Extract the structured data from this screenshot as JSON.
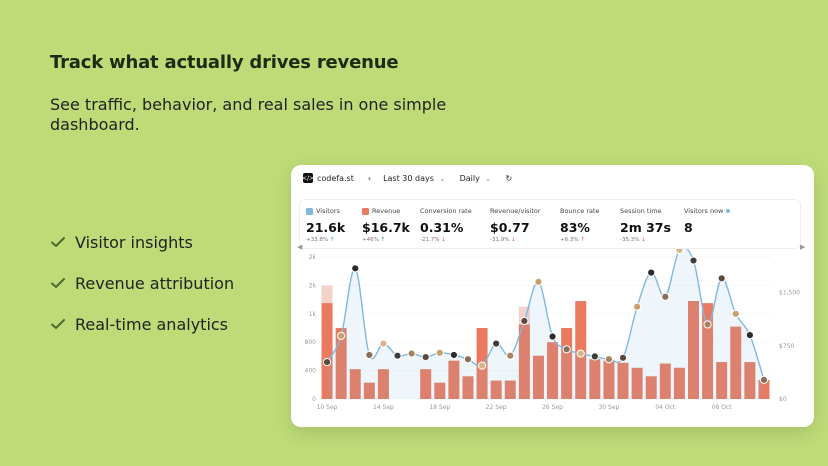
{
  "hero": {
    "headline": "Track what actually drives revenue",
    "subheadline": "See traffic, behavior, and real sales in one simple dashboard.",
    "features": [
      "Visitor insights",
      "Revenue attribution",
      "Real-time analytics"
    ]
  },
  "dashboard": {
    "site": "codefa.st",
    "range": "Last 30 days",
    "granularity": "Daily",
    "metrics": [
      {
        "label": "Visitors",
        "value": "21.6k",
        "change": "+33.8%",
        "dir": "up",
        "checkbox": "blue"
      },
      {
        "label": "Revenue",
        "value": "$16.7k",
        "change": "+46%",
        "dir": "up",
        "checkbox": "orange"
      },
      {
        "label": "Conversion rate",
        "value": "0.31%",
        "change": "-21.7%",
        "dir": "down"
      },
      {
        "label": "Revenue/visitor",
        "value": "$0.77",
        "change": "-31.9%",
        "dir": "down"
      },
      {
        "label": "Bounce rate",
        "value": "83%",
        "change": "+6.3%",
        "dir": "up"
      },
      {
        "label": "Session time",
        "value": "2m 37s",
        "change": "-35.3%",
        "dir": "down"
      },
      {
        "label": "Visitors now",
        "value": "8",
        "change": "",
        "dir": ""
      }
    ]
  },
  "colors": {
    "background": "#bedb78",
    "bar": "#e97a5f",
    "bar_light": "#f3d3c9",
    "line": "#7fb8e2",
    "check": "#4c6a2c"
  },
  "chart_data": {
    "type": "bar",
    "series": [
      {
        "name": "Revenue",
        "values": [
          1350,
          1000,
          420,
          230,
          420,
          0,
          0,
          420,
          230,
          540,
          320,
          1000,
          260,
          260,
          1050,
          610,
          800,
          1000,
          1380,
          560,
          540,
          510,
          440,
          320,
          500,
          440,
          1380,
          1350,
          520,
          1020,
          520,
          270
        ]
      },
      {
        "name": "Visitors",
        "values": [
          520,
          890,
          1840,
          620,
          780,
          610,
          640,
          590,
          650,
          620,
          560,
          470,
          780,
          610,
          1100,
          1650,
          880,
          700,
          640,
          600,
          560,
          580,
          1300,
          1780,
          1440,
          2100,
          1950,
          1050,
          1700,
          1200,
          900,
          270
        ]
      }
    ],
    "light_bars": [
      0,
      14
    ],
    "x_tick_labels": [
      "10 Sep",
      "14 Sep",
      "18 Sep",
      "22 Sep",
      "26 Sep",
      "30 Sep",
      "04 Oct",
      "08 Oct"
    ],
    "y_left_tick_labels": [
      "0",
      "400",
      "800",
      "1k",
      "2k",
      "2k"
    ],
    "y_right_tick_labels": [
      "$0",
      "$750",
      "$1,500"
    ],
    "y_left_ticks": [
      0,
      400,
      800,
      1200,
      1600,
      2000
    ],
    "y_right_ticks": [
      0,
      750,
      1500
    ],
    "ylim_left": [
      0,
      2000
    ],
    "ylim_right": [
      0,
      2000
    ]
  }
}
